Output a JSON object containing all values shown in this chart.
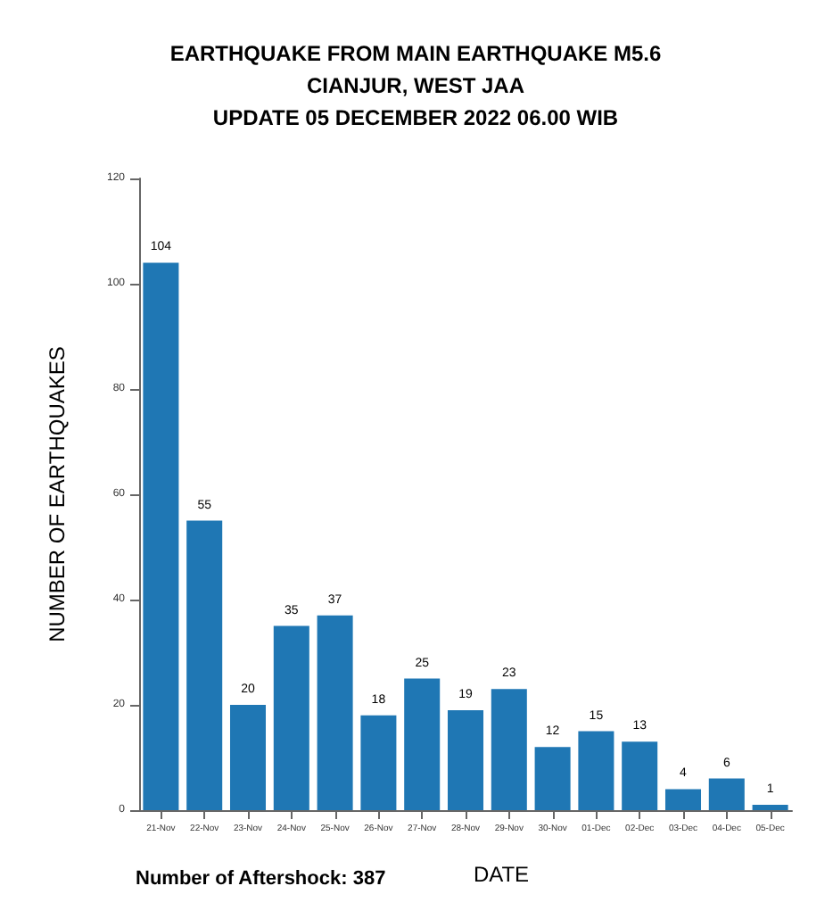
{
  "chart_data": {
    "type": "bar",
    "title": "EARTHQUAKE FROM MAIN EARTHQUAKE M5.6\nCIANJUR, WEST JAA\nUPDATE 05 DECEMBER 2022 06.00 WIB",
    "xlabel": "DATE",
    "ylabel": "NUMBER OF EARTHQUAKES",
    "categories": [
      "21-Nov",
      "22-Nov",
      "23-Nov",
      "24-Nov",
      "25-Nov",
      "26-Nov",
      "27-Nov",
      "28-Nov",
      "29-Nov",
      "30-Nov",
      "01-Dec",
      "02-Dec",
      "03-Dec",
      "04-Dec",
      "05-Dec"
    ],
    "values": [
      104,
      55,
      20,
      35,
      37,
      18,
      25,
      19,
      23,
      12,
      15,
      13,
      4,
      6,
      1
    ],
    "color": "#1f77b4",
    "ylim": [
      0,
      120
    ],
    "yticks": [
      0,
      20,
      40,
      60,
      80,
      100,
      120
    ],
    "data_labels": true,
    "grid": false,
    "annotations": [
      "Number of Aftershock: 387"
    ]
  }
}
